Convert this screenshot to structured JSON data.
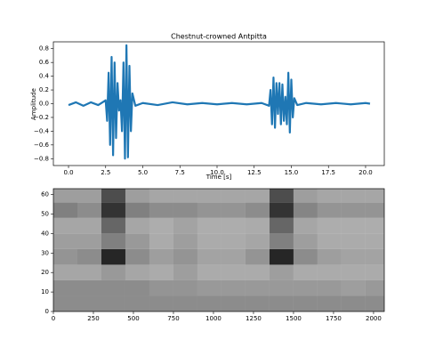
{
  "chart_data": [
    {
      "type": "line",
      "title": "Chestnut-crowned Antpitta",
      "xlabel": "Time [s]",
      "ylabel": "Amplitude",
      "color": "#1f77b4",
      "x": [
        0,
        0.5,
        1.0,
        1.5,
        2.0,
        2.5,
        2.6,
        2.7,
        2.8,
        2.9,
        3.0,
        3.1,
        3.2,
        3.3,
        3.4,
        3.5,
        3.6,
        3.7,
        3.8,
        3.9,
        4.0,
        4.1,
        4.2,
        4.3,
        4.5,
        5,
        6,
        7,
        8,
        9,
        10,
        11,
        12,
        13,
        13.5,
        13.6,
        13.7,
        13.8,
        13.9,
        14.0,
        14.1,
        14.2,
        14.3,
        14.4,
        14.5,
        14.6,
        14.7,
        14.8,
        14.9,
        15.0,
        15.1,
        15.2,
        15.4,
        16,
        17,
        18,
        19,
        20,
        20.3
      ],
      "values": [
        -0.02,
        0.02,
        -0.03,
        0.02,
        -0.02,
        0.05,
        -0.25,
        0.45,
        -0.6,
        0.68,
        -0.75,
        0.6,
        -0.5,
        0.3,
        -0.1,
        0.05,
        -0.4,
        0.6,
        -0.8,
        0.85,
        -0.78,
        0.55,
        -0.4,
        0.15,
        -0.03,
        0.01,
        -0.02,
        0.02,
        -0.01,
        0.01,
        -0.01,
        0.01,
        -0.01,
        0.01,
        -0.03,
        0.2,
        -0.3,
        0.38,
        -0.35,
        0.3,
        -0.15,
        0.3,
        -0.3,
        0.28,
        -0.25,
        0.1,
        -0.3,
        0.45,
        -0.42,
        0.35,
        -0.2,
        0.08,
        -0.02,
        0.01,
        -0.01,
        0.01,
        -0.01,
        0.01,
        0
      ],
      "xlim": [
        -1.02,
        21.26
      ],
      "ylim": [
        -0.9,
        0.9
      ],
      "xticks": [
        {
          "value": 0,
          "label": "0.0"
        },
        2.5,
        {
          "value": 5,
          "label": "5.0"
        },
        7.5,
        {
          "value": 10,
          "label": "10.0"
        },
        12.5,
        {
          "value": 15,
          "label": "15.0"
        },
        17.5,
        {
          "value": 20,
          "label": "20.0"
        }
      ],
      "yticks": [
        {
          "value": -0.8,
          "label": "−0.8"
        },
        {
          "value": -0.6,
          "label": "−0.6"
        },
        {
          "value": -0.4,
          "label": "−0.4"
        },
        {
          "value": -0.2,
          "label": "−0.2"
        },
        {
          "value": 0,
          "label": "0.0"
        },
        0.2,
        0.4,
        0.6,
        0.8
      ]
    },
    {
      "type": "heatmap",
      "colormap": "Greys",
      "xbins": [
        0,
        150,
        300,
        450,
        600,
        750,
        900,
        1050,
        1200,
        1350,
        1500,
        1650,
        1800,
        1950,
        2100
      ],
      "ybins": [
        0,
        8,
        16,
        24,
        32,
        40,
        48,
        56,
        63
      ],
      "values": [
        [
          0.45,
          0.45,
          0.45,
          0.45,
          0.45,
          0.45,
          0.45,
          0.45,
          0.45,
          0.45,
          0.45,
          0.45,
          0.45,
          0.45
        ],
        [
          0.45,
          0.45,
          0.45,
          0.45,
          0.42,
          0.42,
          0.4,
          0.4,
          0.4,
          0.4,
          0.4,
          0.4,
          0.38,
          0.4
        ],
        [
          0.35,
          0.35,
          0.4,
          0.35,
          0.33,
          0.38,
          0.33,
          0.33,
          0.33,
          0.38,
          0.33,
          0.33,
          0.33,
          0.33
        ],
        [
          0.42,
          0.45,
          0.85,
          0.45,
          0.38,
          0.42,
          0.36,
          0.36,
          0.42,
          0.85,
          0.45,
          0.38,
          0.36,
          0.36
        ],
        [
          0.38,
          0.38,
          0.5,
          0.4,
          0.33,
          0.38,
          0.33,
          0.33,
          0.35,
          0.5,
          0.38,
          0.33,
          0.33,
          0.33
        ],
        [
          0.35,
          0.35,
          0.6,
          0.35,
          0.32,
          0.36,
          0.32,
          0.32,
          0.33,
          0.6,
          0.35,
          0.32,
          0.32,
          0.32
        ],
        [
          0.5,
          0.45,
          0.8,
          0.5,
          0.45,
          0.45,
          0.42,
          0.42,
          0.45,
          0.8,
          0.48,
          0.42,
          0.42,
          0.42
        ],
        [
          0.38,
          0.38,
          0.7,
          0.38,
          0.35,
          0.35,
          0.35,
          0.35,
          0.35,
          0.7,
          0.38,
          0.35,
          0.35,
          0.35
        ]
      ],
      "xlim": [
        0,
        2067
      ],
      "ylim": [
        0,
        63
      ],
      "xticks": [
        0,
        250,
        500,
        750,
        1000,
        1250,
        1500,
        1750,
        2000
      ],
      "yticks": [
        0,
        10,
        20,
        30,
        40,
        50,
        60
      ]
    }
  ]
}
